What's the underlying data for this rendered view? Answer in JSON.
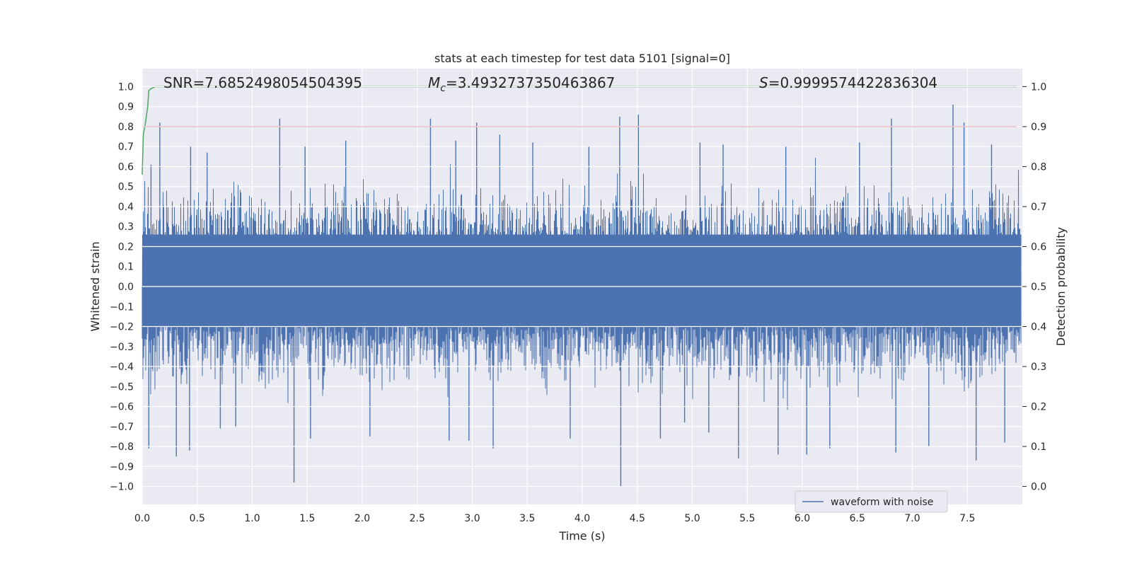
{
  "chart_data": {
    "type": "line",
    "title": "stats at each timestep for test data 5101 [signal=0]",
    "xlabel": "Time (s)",
    "ylabel": "Whitened strain",
    "y2label": "Detection probability",
    "xlim": [
      0.0,
      8.0
    ],
    "ylim": [
      -1.09,
      1.09
    ],
    "y2lim": [
      -0.045,
      1.045
    ],
    "xticks": [
      "0.0",
      "0.5",
      "1.0",
      "1.5",
      "2.0",
      "2.5",
      "3.0",
      "3.5",
      "4.0",
      "4.5",
      "5.0",
      "5.5",
      "6.0",
      "6.5",
      "7.0",
      "7.5"
    ],
    "yticks": [
      "1.0",
      "0.9",
      "0.8",
      "0.7",
      "0.6",
      "0.5",
      "0.4",
      "0.3",
      "0.2",
      "0.1",
      "0.0",
      "−0.1",
      "−0.2",
      "−0.3",
      "−0.4",
      "−0.5",
      "−0.6",
      "−0.7",
      "−0.8",
      "−0.9",
      "−1.0"
    ],
    "y2ticks": [
      "1.0",
      "0.9",
      "0.8",
      "0.7",
      "0.6",
      "0.5",
      "0.4",
      "0.3",
      "0.2",
      "0.1",
      "0.0"
    ],
    "annotations": {
      "snr": "SNR=7.6852498054504395",
      "mc_prefix": "M",
      "mc_sub": "c",
      "mc_value": "=3.4932737350463867",
      "s_prefix": "S",
      "s_value": "=0.9999574422836304"
    },
    "legend": {
      "entry": "waveform with noise",
      "placement": "lower-right"
    },
    "series": [
      {
        "name": "waveform with noise",
        "color": "#4c72b0",
        "kind": "noise",
        "axis": "left",
        "t_end": 7.99,
        "envelope": 0.55
      },
      {
        "name": "threshold",
        "color": "#c44e52",
        "axis": "right",
        "x": [
          0.0,
          7.95
        ],
        "values": [
          0.9,
          0.9
        ]
      },
      {
        "name": "detection probability",
        "color": "#55a868",
        "axis": "right",
        "x": [
          0.0,
          0.01,
          0.03,
          0.05,
          0.06,
          0.08,
          0.12,
          0.2,
          0.5,
          1.0,
          7.95
        ],
        "values": [
          0.78,
          0.88,
          0.91,
          0.95,
          0.99,
          0.995,
          1.0,
          1.0,
          1.0,
          1.0,
          1.0
        ]
      }
    ],
    "spikes": [
      {
        "t": 0.06,
        "v": -0.81
      },
      {
        "t": 0.08,
        "v": 0.61
      },
      {
        "t": 0.16,
        "v": 0.82
      },
      {
        "t": 0.31,
        "v": -0.85
      },
      {
        "t": 0.43,
        "v": -0.82
      },
      {
        "t": 0.44,
        "v": 0.7
      },
      {
        "t": 0.59,
        "v": 0.67
      },
      {
        "t": 0.71,
        "v": -0.71
      },
      {
        "t": 0.85,
        "v": -0.7
      },
      {
        "t": 1.25,
        "v": 0.84
      },
      {
        "t": 1.38,
        "v": -0.98
      },
      {
        "t": 1.48,
        "v": 0.7
      },
      {
        "t": 1.53,
        "v": -0.76
      },
      {
        "t": 1.85,
        "v": 0.73
      },
      {
        "t": 2.07,
        "v": -0.75
      },
      {
        "t": 2.62,
        "v": 0.84
      },
      {
        "t": 2.79,
        "v": -0.77
      },
      {
        "t": 2.85,
        "v": 0.73
      },
      {
        "t": 2.97,
        "v": -0.77
      },
      {
        "t": 3.04,
        "v": 0.82
      },
      {
        "t": 3.19,
        "v": -0.81
      },
      {
        "t": 3.25,
        "v": 0.76
      },
      {
        "t": 3.55,
        "v": 0.72
      },
      {
        "t": 3.89,
        "v": -0.76
      },
      {
        "t": 4.06,
        "v": 0.7
      },
      {
        "t": 4.34,
        "v": 0.85
      },
      {
        "t": 4.35,
        "v": -1.0
      },
      {
        "t": 4.51,
        "v": 0.86
      },
      {
        "t": 4.71,
        "v": -0.76
      },
      {
        "t": 4.93,
        "v": -0.68
      },
      {
        "t": 5.07,
        "v": 0.72
      },
      {
        "t": 5.15,
        "v": -0.73
      },
      {
        "t": 5.28,
        "v": 0.71
      },
      {
        "t": 5.42,
        "v": -0.86
      },
      {
        "t": 5.78,
        "v": -0.84
      },
      {
        "t": 5.85,
        "v": 0.7
      },
      {
        "t": 6.04,
        "v": -0.84
      },
      {
        "t": 6.25,
        "v": -0.81
      },
      {
        "t": 6.52,
        "v": 0.72
      },
      {
        "t": 6.81,
        "v": 0.84
      },
      {
        "t": 6.85,
        "v": -0.83
      },
      {
        "t": 7.15,
        "v": -0.8
      },
      {
        "t": 7.37,
        "v": 0.91
      },
      {
        "t": 7.47,
        "v": 0.82
      },
      {
        "t": 7.58,
        "v": -0.87
      },
      {
        "t": 7.72,
        "v": 0.71
      },
      {
        "t": 7.84,
        "v": -0.78
      }
    ]
  }
}
